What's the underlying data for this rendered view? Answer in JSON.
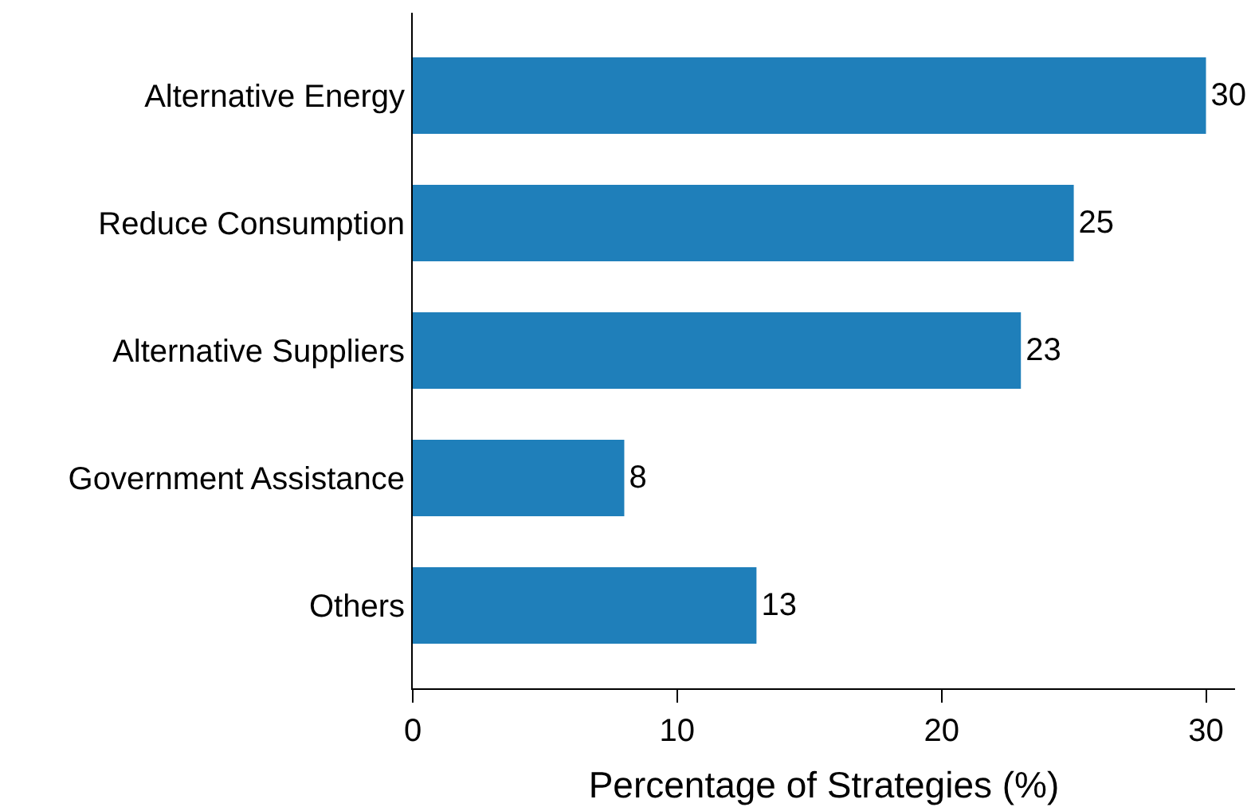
{
  "chart_data": {
    "type": "bar",
    "orientation": "horizontal",
    "xlabel": "Percentage of Strategies (%)",
    "categories": [
      "Alternative Energy",
      "Reduce Consumption",
      "Alternative Suppliers",
      "Government Assistance",
      "Others"
    ],
    "values": [
      30,
      25,
      23,
      8,
      13
    ],
    "color": "#1f7fba",
    "xlim": [
      0,
      31.1
    ],
    "xticks": [
      0,
      10,
      20,
      30
    ],
    "data_labels": true,
    "legend": false
  }
}
